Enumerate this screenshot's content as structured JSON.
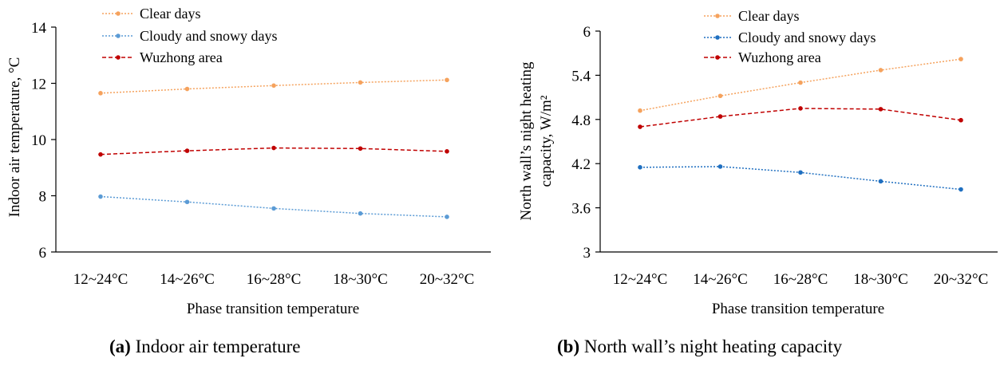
{
  "chart_data": [
    {
      "type": "line",
      "categories": [
        "12~24°C",
        "14~26°C",
        "16~28°C",
        "18~30°C",
        "20~32°C"
      ],
      "series": [
        {
          "name": "Clear days",
          "values": [
            11.65,
            11.8,
            11.92,
            12.03,
            12.12
          ],
          "color": "#f5a25d",
          "style": "dotted"
        },
        {
          "name": "Cloudy and snowy days",
          "values": [
            7.97,
            7.78,
            7.55,
            7.37,
            7.25
          ],
          "color": "#5b9bd5",
          "style": "dotted"
        },
        {
          "name": "Wuzhong area",
          "values": [
            9.47,
            9.6,
            9.7,
            9.68,
            9.58
          ],
          "color": "#c00000",
          "style": "dashed"
        }
      ],
      "xlabel": "Phase transition temperature",
      "ylabel": "Indoor air temperature, °C",
      "ylim": [
        6,
        14
      ],
      "yticks": [
        "6",
        "8",
        "10",
        "12",
        "14"
      ],
      "legend": "top-left",
      "grid": false
    },
    {
      "type": "line",
      "categories": [
        "12~24°C",
        "14~26°C",
        "16~28°C",
        "18~30°C",
        "20~32°C"
      ],
      "series": [
        {
          "name": "Clear days",
          "values": [
            4.92,
            5.12,
            5.3,
            5.47,
            5.62
          ],
          "color": "#f5a25d",
          "style": "dotted"
        },
        {
          "name": "Cloudy and snowy days",
          "values": [
            4.15,
            4.16,
            4.08,
            3.96,
            3.85
          ],
          "color": "#1f6fc0",
          "style": "dotted"
        },
        {
          "name": "Wuzhong area",
          "values": [
            4.7,
            4.84,
            4.95,
            4.94,
            4.79
          ],
          "color": "#c00000",
          "style": "dashed"
        }
      ],
      "xlabel": "Phase transition temperature",
      "ylabel_line1": "North wall’s night heating",
      "ylabel_line2": "capacity, W/m²",
      "ylim": [
        3,
        6
      ],
      "yticks": [
        "3",
        "3.6",
        "4.2",
        "4.8",
        "5.4",
        "6"
      ],
      "legend": "top-left",
      "grid": false
    }
  ],
  "captions": {
    "a_tag": "(a)",
    "a_text": " Indoor air temperature",
    "b_tag": "(b)",
    "b_text": " North wall’s night heating capacity"
  }
}
